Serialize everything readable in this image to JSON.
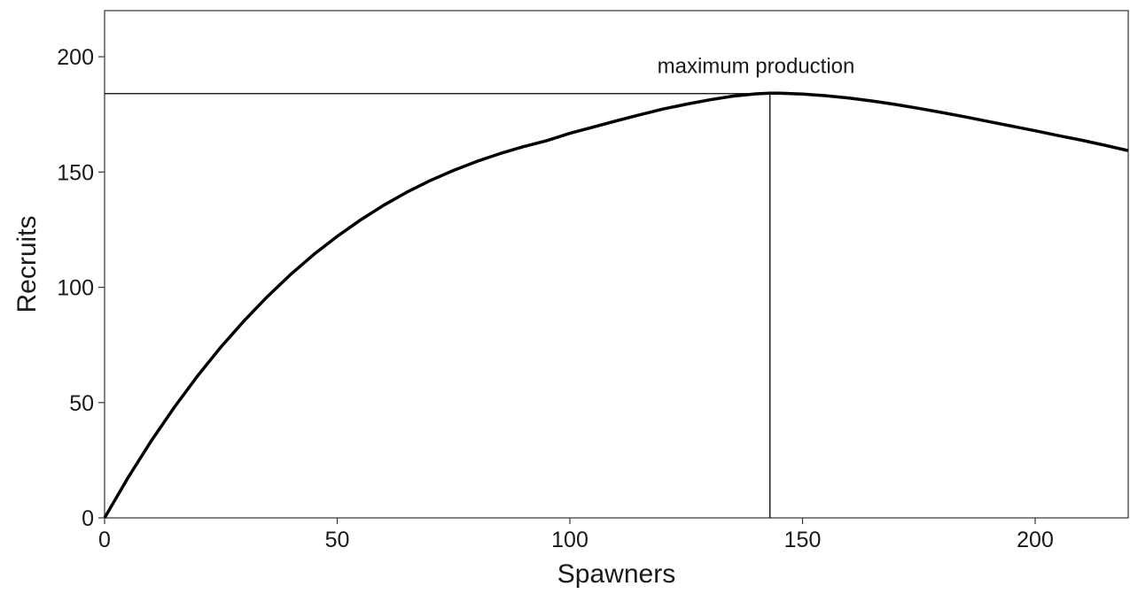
{
  "chart_data": {
    "type": "line",
    "title": "",
    "xlabel": "Spawners",
    "ylabel": "Recruits",
    "xlim": [
      0,
      220
    ],
    "ylim": [
      0,
      220
    ],
    "x_ticks": [
      0,
      50,
      100,
      150,
      200
    ],
    "y_ticks": [
      0,
      50,
      100,
      150,
      200
    ],
    "grid": false,
    "series": [
      {
        "color": "#000000",
        "x": [
          0,
          5,
          10,
          15,
          20,
          25,
          30,
          35,
          40,
          45,
          50,
          55,
          60,
          65,
          70,
          75,
          80,
          85,
          90,
          95,
          100,
          105,
          110,
          115,
          120,
          125,
          130,
          135,
          140,
          143,
          145,
          150,
          155,
          160,
          165,
          170,
          175,
          180,
          185,
          190,
          195,
          200,
          205,
          210,
          215,
          220
        ],
        "y": [
          0,
          17.3,
          33.3,
          48.0,
          61.6,
          74.1,
          85.5,
          96.0,
          105.6,
          114.3,
          122.1,
          129.2,
          135.6,
          141.3,
          146.3,
          150.7,
          154.6,
          158.0,
          161.0,
          163.6,
          166.8,
          169.5,
          172.2,
          174.8,
          177.3,
          179.4,
          181.3,
          182.9,
          183.9,
          184.2,
          184.2,
          183.8,
          183.1,
          182.1,
          180.8,
          179.3,
          177.6,
          175.8,
          173.9,
          171.9,
          169.9,
          167.9,
          165.8,
          163.8,
          161.6,
          159.3
        ]
      }
    ],
    "reference_lines": {
      "vertical_x": 143,
      "horizontal_y": 184
    },
    "annotation": {
      "text": "maximum production",
      "x": 140,
      "y": 193
    }
  }
}
